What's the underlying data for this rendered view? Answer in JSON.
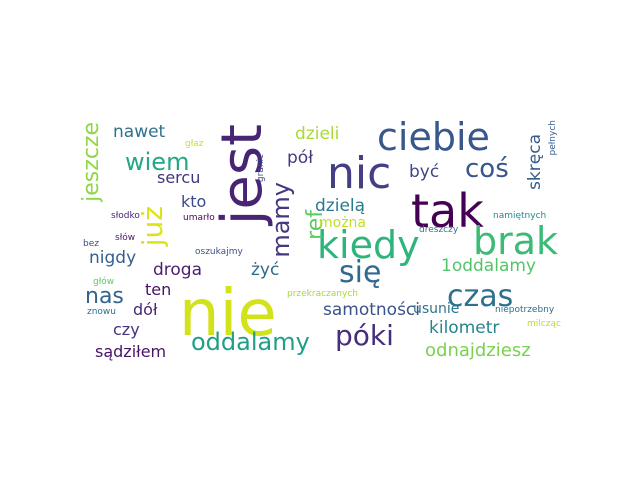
{
  "words": [
    {
      "text": "nie",
      "color": "#d2e21b"
    },
    {
      "text": "jest",
      "color": "#482475"
    },
    {
      "text": "nic",
      "color": "#433e85"
    },
    {
      "text": "ciebie",
      "color": "#38588c"
    },
    {
      "text": "tak",
      "color": "#440154"
    },
    {
      "text": "kiedy",
      "color": "#2fb47c"
    },
    {
      "text": "brak",
      "color": "#3bbb75"
    },
    {
      "text": "się",
      "color": "#31688e"
    },
    {
      "text": "czas",
      "color": "#2c728e"
    },
    {
      "text": "coś",
      "color": "#39568c"
    },
    {
      "text": "już",
      "color": "#dde318"
    },
    {
      "text": "mamy",
      "color": "#453781"
    },
    {
      "text": "ref",
      "color": "#5ec962"
    },
    {
      "text": "jeszcze",
      "color": "#8fd744"
    },
    {
      "text": "wiem",
      "color": "#22a884"
    },
    {
      "text": "nawet",
      "color": "#2c728e"
    },
    {
      "text": "dzieli",
      "color": "#a8db34"
    },
    {
      "text": "pół",
      "color": "#443983"
    },
    {
      "text": "sercu",
      "color": "#46337e"
    },
    {
      "text": "kto",
      "color": "#3e4989"
    },
    {
      "text": "nas",
      "color": "#33638d"
    },
    {
      "text": "nigdy",
      "color": "#355f8d"
    },
    {
      "text": "droga",
      "color": "#481f70"
    },
    {
      "text": "żyć",
      "color": "#30698e"
    },
    {
      "text": "dzielą",
      "color": "#297a8e"
    },
    {
      "text": "można",
      "color": "#c2df23"
    },
    {
      "text": "być",
      "color": "#3f4788"
    },
    {
      "text": "skręca",
      "color": "#365d8d"
    },
    {
      "text": "1oddalamy",
      "color": "#52c569"
    },
    {
      "text": "usunie",
      "color": "#2a768e"
    },
    {
      "text": "samotności",
      "color": "#3b528b"
    },
    {
      "text": "ten",
      "color": "#471164"
    },
    {
      "text": "dół",
      "color": "#482878"
    },
    {
      "text": "czy",
      "color": "#46327e"
    },
    {
      "text": "oddalamy",
      "color": "#1f9f88"
    },
    {
      "text": "póki",
      "color": "#472d7b"
    },
    {
      "text": "kilometr",
      "color": "#25848e"
    },
    {
      "text": "odnajdziesz",
      "color": "#7ad151"
    },
    {
      "text": "sądziłem",
      "color": "#481467"
    },
    {
      "text": "głaz",
      "color": "#c8e020"
    },
    {
      "text": "słodko",
      "color": "#482576"
    },
    {
      "text": "słów",
      "color": "#48186a"
    },
    {
      "text": "bez",
      "color": "#3e4989"
    },
    {
      "text": "głów",
      "color": "#5ec962"
    },
    {
      "text": "znowu",
      "color": "#2e6e8e"
    },
    {
      "text": "umarło",
      "color": "#46085c"
    },
    {
      "text": "oszukajmy",
      "color": "#3b528b"
    },
    {
      "text": "granic",
      "color": "#3e4989"
    },
    {
      "text": "dreszczy",
      "color": "#2a778e"
    },
    {
      "text": "namiętnych",
      "color": "#23898e"
    },
    {
      "text": "niepotrzebny",
      "color": "#2e6d8e"
    },
    {
      "text": "przekraczanych",
      "color": "#a5db36"
    },
    {
      "text": "milcząc",
      "color": "#b5de2b"
    },
    {
      "text": "pełnych",
      "color": "#34608d"
    }
  ]
}
